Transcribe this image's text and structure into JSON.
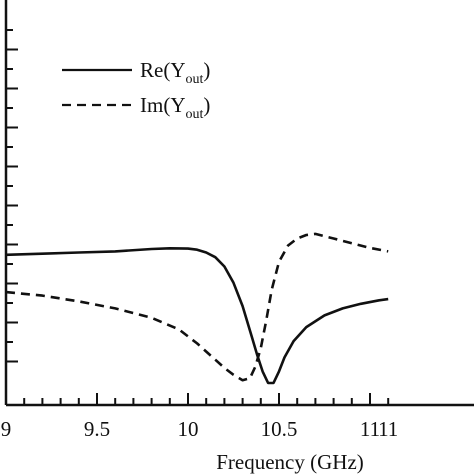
{
  "chart_data": {
    "type": "line",
    "xlabel": "Frequency (GHz)",
    "ylabel": "",
    "xlim": [
      9.0,
      11.1
    ],
    "ylim": [
      0,
      1
    ],
    "y_ticks_labeled": false,
    "x_ticks": [
      {
        "value": 9.0,
        "label": "9"
      },
      {
        "value": 9.5,
        "label": "9.5"
      },
      {
        "value": 10.0,
        "label": "10"
      },
      {
        "value": 10.5,
        "label": "10.5"
      },
      {
        "value": 11.0,
        "label": "11"
      },
      {
        "value": 11.1,
        "label": "11"
      }
    ],
    "series": [
      {
        "name": "Re(Y",
        "name_subscript": "out",
        "name_suffix": ")",
        "style": "solid",
        "color": "#111111",
        "x": [
          9.0,
          9.2,
          9.4,
          9.6,
          9.8,
          9.9,
          10.0,
          10.05,
          10.1,
          10.15,
          10.2,
          10.25,
          10.3,
          10.35,
          10.38,
          10.41,
          10.44,
          10.47,
          10.5,
          10.53,
          10.58,
          10.65,
          10.75,
          10.85,
          10.95,
          11.05,
          11.1
        ],
        "y": [
          0.55,
          0.555,
          0.56,
          0.565,
          0.575,
          0.578,
          0.577,
          0.572,
          0.56,
          0.54,
          0.5,
          0.43,
          0.33,
          0.2,
          0.12,
          0.05,
          0.0,
          0.0,
          0.05,
          0.11,
          0.18,
          0.24,
          0.29,
          0.32,
          0.34,
          0.355,
          0.36
        ]
      },
      {
        "name": "Im(Y",
        "name_subscript": "out",
        "name_suffix": ")",
        "style": "dashed",
        "color": "#111111",
        "x": [
          9.0,
          9.2,
          9.4,
          9.6,
          9.8,
          9.95,
          10.05,
          10.15,
          10.2,
          10.25,
          10.3,
          10.34,
          10.37,
          10.4,
          10.43,
          10.46,
          10.5,
          10.55,
          10.6,
          10.65,
          10.7,
          10.8,
          10.9,
          11.0,
          11.1
        ],
        "y": [
          0.39,
          0.375,
          0.35,
          0.32,
          0.28,
          0.23,
          0.17,
          0.1,
          0.065,
          0.035,
          0.012,
          0.02,
          0.07,
          0.15,
          0.27,
          0.4,
          0.52,
          0.59,
          0.62,
          0.635,
          0.64,
          0.62,
          0.6,
          0.58,
          0.565
        ]
      }
    ],
    "legend": "top-left"
  }
}
